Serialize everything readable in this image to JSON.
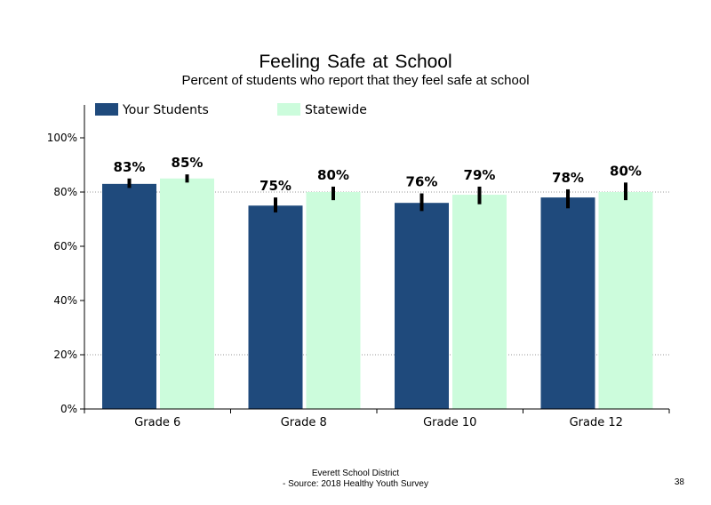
{
  "chart_data": {
    "type": "bar",
    "title": "Feeling  Safe at School",
    "subtitle": "Percent of students who report that they feel safe at school",
    "categories": [
      "Grade 6",
      "Grade 8",
      "Grade 10",
      "Grade 12"
    ],
    "series": [
      {
        "name": "Your Students",
        "color": "#1f4a7c",
        "values": [
          83,
          75,
          76,
          78
        ],
        "labels": [
          "83%",
          "75%",
          "76%",
          "78%"
        ],
        "error": [
          [
            81.5,
            85.0
          ],
          [
            72.5,
            78.0
          ],
          [
            73.0,
            79.5
          ],
          [
            74.0,
            81.0
          ]
        ]
      },
      {
        "name": "Statewide",
        "color": "#ccfcdc",
        "values": [
          85,
          80,
          79,
          80
        ],
        "labels": [
          "85%",
          "80%",
          "79%",
          "80%"
        ],
        "error": [
          [
            83.5,
            86.5
          ],
          [
            77.0,
            82.0
          ],
          [
            75.5,
            82.0
          ],
          [
            77.0,
            83.5
          ]
        ]
      }
    ],
    "ylim": [
      0,
      100
    ],
    "yticks": [
      0,
      20,
      40,
      60,
      80,
      100
    ],
    "ytick_labels": [
      "0%",
      "20%",
      "40%",
      "60%",
      "80%",
      "100%"
    ],
    "grid_lines": [
      20,
      80
    ],
    "legend_position": "top"
  },
  "footer": {
    "line1": "Everett School District",
    "line2": "- Source: 2018 Healthy  Youth Survey",
    "page_number": "38"
  }
}
